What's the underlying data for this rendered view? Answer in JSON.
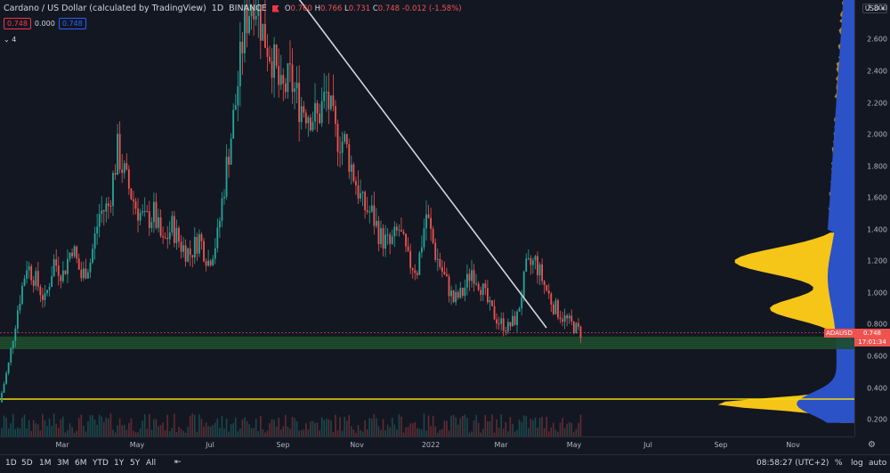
{
  "header": {
    "title": "Cardano / US Dollar (calculated by TradingView)",
    "interval": "1D",
    "exchange": "BINANCE",
    "ohlc": {
      "o_label": "O",
      "o": "0.760",
      "h_label": "H",
      "h": "0.766",
      "l_label": "L",
      "l": "0.731",
      "c_label": "C",
      "c": "0.748",
      "change": "-0.012 (-1.58%)"
    },
    "pill_sell": "0.748",
    "pill_spread": "0.000",
    "pill_buy": "0.748",
    "indicator_count": "4"
  },
  "price_axis": {
    "currency_button": "USD",
    "ticks": [
      "2.600",
      "2.400",
      "2.200",
      "2.000",
      "1.800",
      "1.600",
      "1.400",
      "1.200",
      "1.000",
      "0.800",
      "0.600",
      "0.400",
      "0.200"
    ],
    "top_tick_partial": "2.800",
    "current_symbol": "ADAUSD",
    "current_price": "0.748",
    "countdown": "17:01:34"
  },
  "time_axis": {
    "ticks": [
      "Mar",
      "May",
      "Jul",
      "Sep",
      "Nov",
      "2022",
      "Mar",
      "May",
      "Jul",
      "Sep",
      "Nov"
    ]
  },
  "bottom_bar": {
    "ranges": [
      "1D",
      "5D",
      "1M",
      "3M",
      "6M",
      "YTD",
      "1Y",
      "5Y",
      "All"
    ],
    "clock": "08:58:27 (UTC+2)",
    "percent_toggle": "%",
    "log_toggle": "log",
    "auto_toggle": "auto"
  },
  "colors": {
    "background": "#131722",
    "up_candle": "#26a69a",
    "down_candle": "#ef5350",
    "trendline": "#d1d4dc",
    "support_zone": "#1e4d2b",
    "yellow_line": "#f5d90a",
    "volume_profile_up": "#f5c518",
    "volume_profile_down": "#2c52c8",
    "profile_upper": "#a8862c"
  },
  "chart_data": {
    "type": "candlestick",
    "symbol": "ADAUSD",
    "ylim": [
      0.15,
      2.85
    ],
    "closes_weekly": [
      0.31,
      0.55,
      0.9,
      1.18,
      1.08,
      0.95,
      1.2,
      1.12,
      1.3,
      1.1,
      1.2,
      1.5,
      1.55,
      1.9,
      1.7,
      1.55,
      1.45,
      1.5,
      1.3,
      1.42,
      1.3,
      1.25,
      1.35,
      1.2,
      1.35,
      1.8,
      2.2,
      2.7,
      2.9,
      2.65,
      2.5,
      2.25,
      2.35,
      2.2,
      2.15,
      2.1,
      2.25,
      2.0,
      1.95,
      1.75,
      1.55,
      1.5,
      1.35,
      1.3,
      1.4,
      1.2,
      1.15,
      1.5,
      1.25,
      1.1,
      0.95,
      1.0,
      1.15,
      1.05,
      0.9,
      0.82,
      0.78,
      0.85,
      1.15,
      1.2,
      1.05,
      0.92,
      0.85,
      0.8,
      0.75
    ],
    "current_price": 0.748,
    "support_zone": [
      0.645,
      0.725
    ],
    "yellow_line_price": 0.33,
    "trendline": {
      "from": 2.9,
      "to": 0.78
    }
  }
}
